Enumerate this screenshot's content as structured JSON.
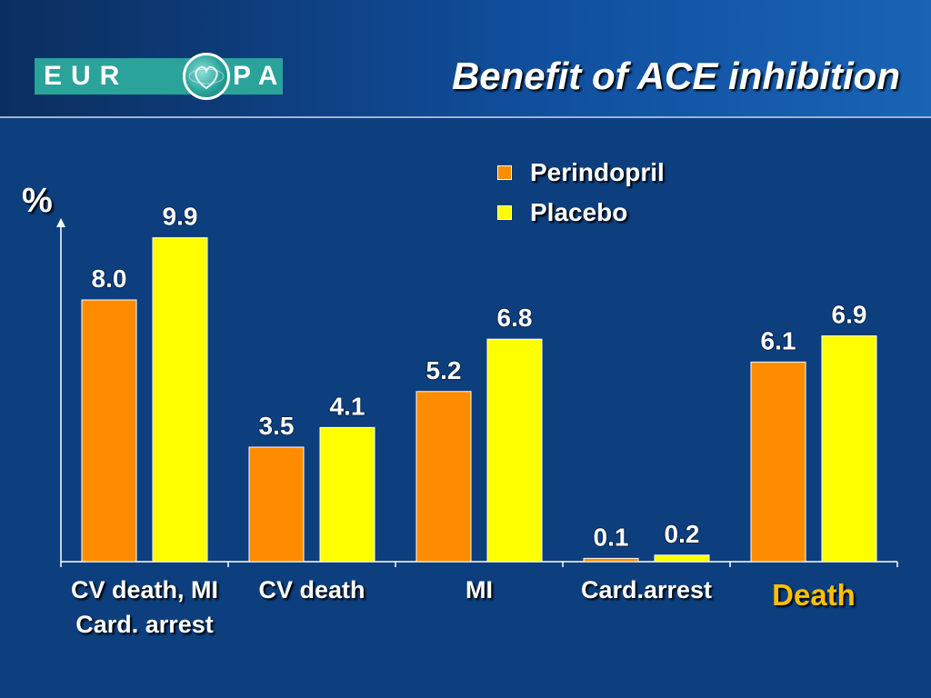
{
  "header": {
    "logo": {
      "left_text": "EUR",
      "right_text": "PA",
      "icon": "heart-globe-icon"
    },
    "title": "Benefit of ACE inhibition"
  },
  "colors": {
    "background": "#0d3f7e",
    "perindopril": "#ff8c00",
    "placebo": "#ffff00",
    "highlight_label": "#ffc000",
    "text": "#ffffff"
  },
  "chart_data": {
    "type": "bar",
    "ylabel": "%",
    "ylim": [
      0,
      10.5
    ],
    "grid": false,
    "legend_position": "top-right",
    "categories": [
      "CV death, MI\nCard. arrest",
      "CV death",
      "MI",
      "Card.arrest",
      "Death"
    ],
    "highlighted_category": "Death",
    "series": [
      {
        "name": "Perindopril",
        "values": [
          8.0,
          3.5,
          5.2,
          0.1,
          6.1
        ],
        "labels": [
          "8.0",
          "3.5",
          "5.2",
          "0.1",
          "6.1"
        ]
      },
      {
        "name": "Placebo",
        "values": [
          9.9,
          4.1,
          6.8,
          0.2,
          6.9
        ],
        "labels": [
          "9.9",
          "4.1",
          "6.8",
          "0.2",
          "6.9"
        ]
      }
    ]
  }
}
